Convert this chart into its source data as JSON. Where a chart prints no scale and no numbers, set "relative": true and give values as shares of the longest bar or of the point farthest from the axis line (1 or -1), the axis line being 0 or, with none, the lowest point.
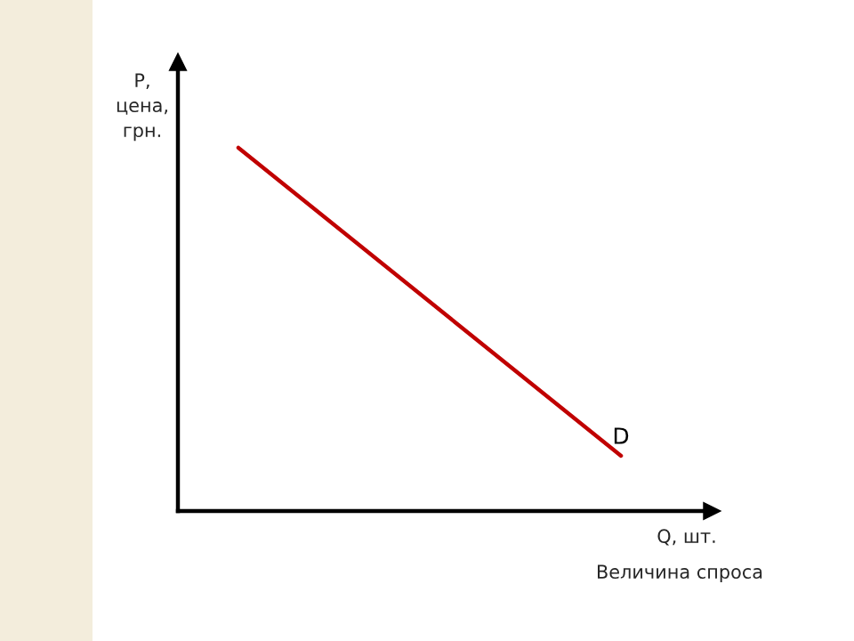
{
  "chart_data": {
    "type": "line",
    "relative": true,
    "categories": [
      null,
      null
    ],
    "series": [
      {
        "name": "D",
        "color": "#c00000",
        "values": [
          1,
          0.152
        ]
      }
    ],
    "xlabel": "Q, шт.",
    "ylabel": "P,\nцена,\nгрн.",
    "annotations": [
      "Величина спроса"
    ],
    "legend": false,
    "marker": "none",
    "line_style": "solid"
  }
}
